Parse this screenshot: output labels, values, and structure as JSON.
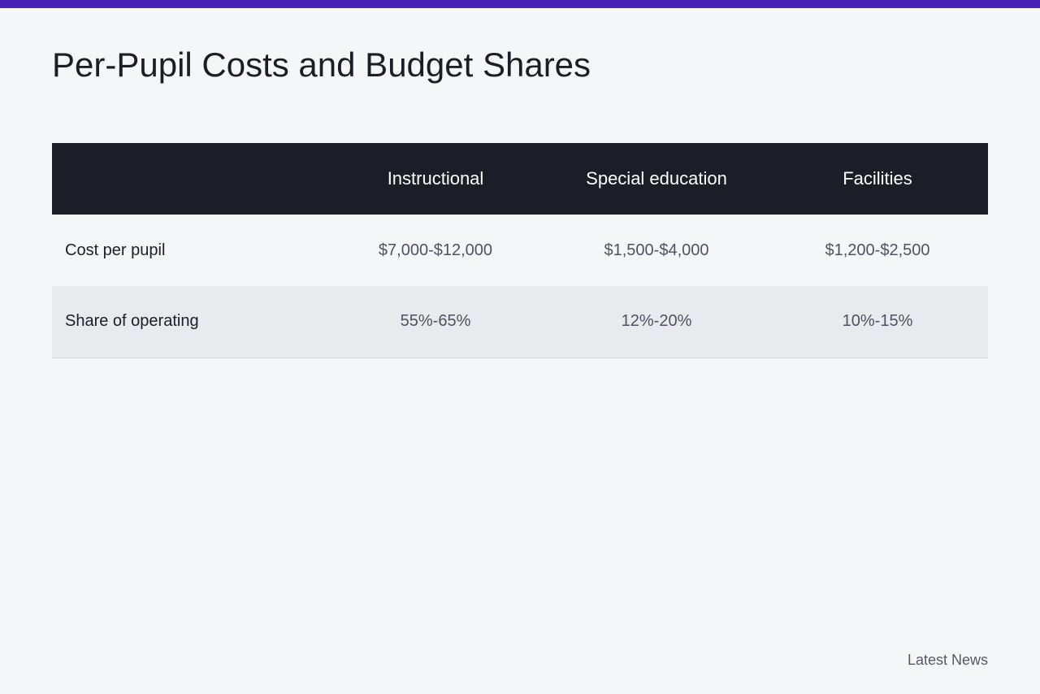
{
  "accent_color": "#4a22b8",
  "header_color": "#1b1e27",
  "page_title": "Per-Pupil Costs and Budget Shares",
  "table": {
    "columns": [
      "",
      "Instructional",
      "Special education",
      "Facilities"
    ],
    "rows": [
      {
        "label": "Cost per pupil",
        "values": [
          "$7,000-$12,000",
          "$1,500-$4,000",
          "$1,200-$2,500"
        ]
      },
      {
        "label": "Share of operating",
        "values": [
          "55%-65%",
          "12%-20%",
          "10%-15%"
        ]
      }
    ]
  },
  "footer": {
    "link_label": "Latest News"
  }
}
